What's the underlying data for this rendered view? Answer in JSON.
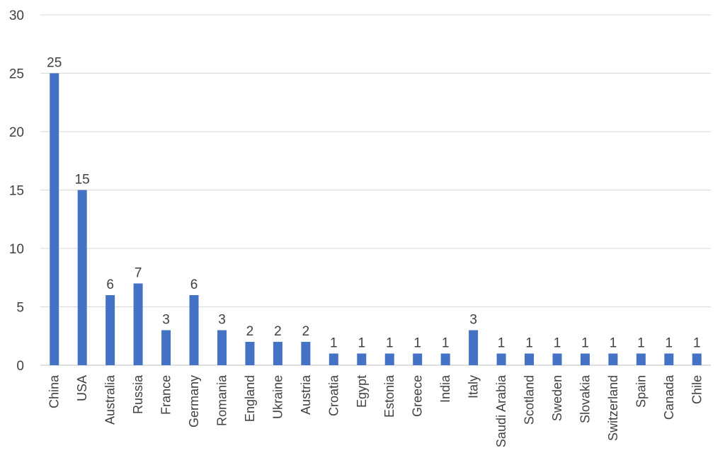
{
  "chart_data": {
    "type": "bar",
    "title": "",
    "xlabel": "",
    "ylabel": "",
    "categories": [
      "China",
      "USA",
      "Australia",
      "Russia",
      "France",
      "Germany",
      "Romania",
      "England",
      "Ukraine",
      "Austria",
      "Croatia",
      "Egypt",
      "Estonia",
      "Greece",
      "India",
      "Italy",
      "Saudi Arabia",
      "Scotland",
      "Sweden",
      "Slovakia",
      "Switzerland",
      "Spain",
      "Canada",
      "Chile"
    ],
    "values": [
      25,
      15,
      6,
      7,
      3,
      6,
      3,
      2,
      2,
      2,
      1,
      1,
      1,
      1,
      1,
      3,
      1,
      1,
      1,
      1,
      1,
      1,
      1,
      1
    ],
    "ylim": [
      0,
      30
    ],
    "yticks": [
      0,
      5,
      10,
      15,
      20,
      25,
      30
    ],
    "grid": true,
    "data_labels": true,
    "bar_color": "#4472c4",
    "gridline_color": "#d9d9d9",
    "text_color": "#404040"
  }
}
